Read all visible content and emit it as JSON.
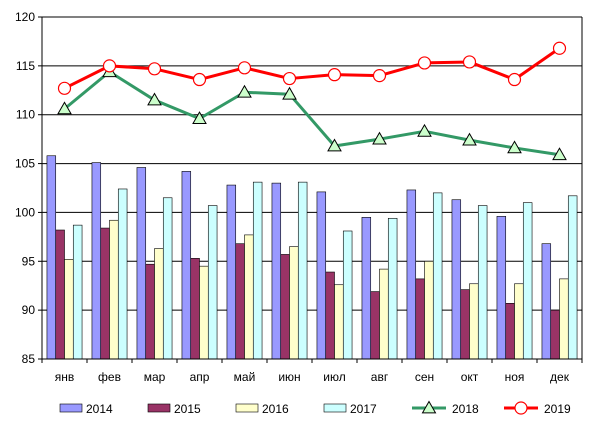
{
  "chart_data": {
    "type": "bar",
    "title": "",
    "xlabel": "",
    "ylabel": "",
    "categories": [
      "янв",
      "фев",
      "мар",
      "апр",
      "май",
      "июн",
      "июл",
      "авг",
      "сен",
      "окт",
      "ноя",
      "дек"
    ],
    "ylim": [
      85,
      120
    ],
    "yticks": [
      85,
      90,
      95,
      100,
      105,
      110,
      115,
      120
    ],
    "grid": true,
    "legend_position": "bottom",
    "series": [
      {
        "name": "2014",
        "kind": "bar",
        "color": "#9999ff",
        "values": [
          105.8,
          105.1,
          104.6,
          104.2,
          102.8,
          103.0,
          102.1,
          99.5,
          102.3,
          101.3,
          99.6,
          96.8
        ]
      },
      {
        "name": "2015",
        "kind": "bar",
        "color": "#993366",
        "values": [
          98.2,
          98.4,
          94.7,
          95.3,
          96.8,
          95.7,
          93.9,
          91.9,
          93.2,
          92.1,
          90.7,
          90.0
        ]
      },
      {
        "name": "2016",
        "kind": "bar",
        "color": "#ffffcc",
        "values": [
          95.2,
          99.2,
          96.3,
          94.5,
          97.7,
          96.5,
          92.6,
          94.2,
          95.0,
          92.7,
          92.7,
          93.2
        ]
      },
      {
        "name": "2017",
        "kind": "bar",
        "color": "#ccffff",
        "values": [
          98.7,
          102.4,
          101.5,
          100.7,
          103.1,
          103.1,
          98.1,
          99.4,
          102.0,
          100.7,
          101.0,
          101.7
        ]
      },
      {
        "name": "2018",
        "kind": "line",
        "color": "#339966",
        "marker": "triangle",
        "values": [
          110.6,
          114.4,
          111.5,
          109.6,
          112.3,
          112.1,
          106.8,
          107.5,
          108.3,
          107.4,
          106.6,
          105.9
        ]
      },
      {
        "name": "2019",
        "kind": "line",
        "color": "#ff0000",
        "marker": "circle",
        "values": [
          112.7,
          115.0,
          114.7,
          113.6,
          114.8,
          113.7,
          114.1,
          114.0,
          115.3,
          115.4,
          113.6,
          116.8
        ]
      }
    ]
  }
}
